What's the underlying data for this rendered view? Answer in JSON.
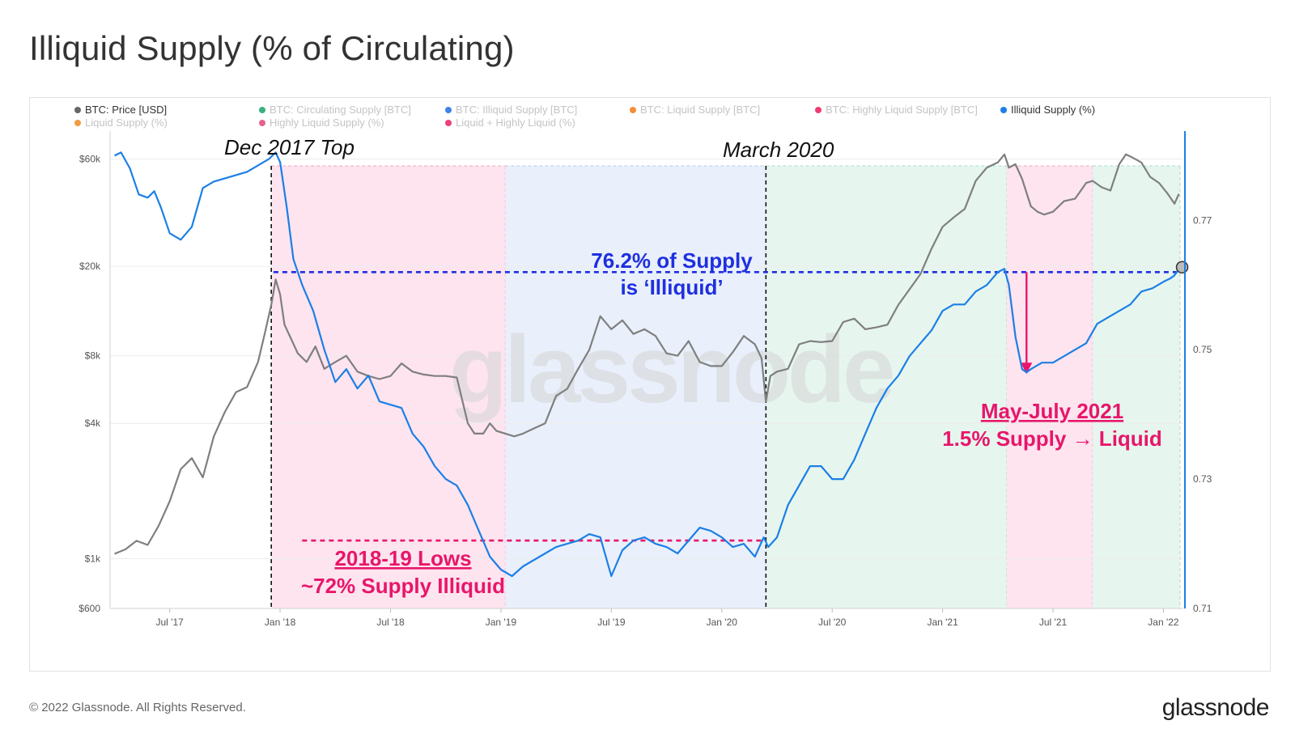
{
  "title": "Illiquid Supply (% of Circulating)",
  "footer": {
    "copyright": "© 2022 Glassnode. All Rights Reserved.",
    "brand": "glassnode"
  },
  "watermark": "glassnode",
  "colors": {
    "price": "#7f7f7f",
    "illiquid": "#1c7fe6",
    "pink_band": "#fde4ef",
    "blue_band": "#e9f0fb",
    "green_band": "#e6f6ef",
    "annot_blue": "#1f2fe0",
    "annot_pink": "#e8166a"
  },
  "chart_data": {
    "type": "line",
    "title": "Illiquid Supply (% of Circulating)",
    "legend": [
      {
        "label": "BTC: Price [USD]",
        "color": "#666666",
        "active": true
      },
      {
        "label": "BTC: Circulating Supply [BTC]",
        "color": "#1aa06a",
        "active": false
      },
      {
        "label": "BTC: Illiquid Supply [BTC]",
        "color": "#1c6fe0",
        "active": false
      },
      {
        "label": "BTC: Liquid Supply [BTC]",
        "color": "#f07a16",
        "active": false
      },
      {
        "label": "BTC: Highly Liquid Supply [BTC]",
        "color": "#f01a5a",
        "active": false
      },
      {
        "label": "Illiquid Supply (%)",
        "color": "#1c7fe6",
        "active": true
      },
      {
        "label": "Liquid Supply (%)",
        "color": "#f08a20",
        "active": false
      },
      {
        "label": "Highly Liquid Supply (%)",
        "color": "#e0457a",
        "active": false
      },
      {
        "label": "Liquid + Highly Liquid (%)",
        "color": "#ea2060",
        "active": false
      }
    ],
    "x_ticks": [
      "Jul '17",
      "Jan '18",
      "Jul '18",
      "Jan '19",
      "Jul '19",
      "Jan '20",
      "Jul '20",
      "Jan '21",
      "Jul '21",
      "Jan '22"
    ],
    "x_tick_dates": [
      2017.5,
      2018.0,
      2018.5,
      2019.0,
      2019.5,
      2020.0,
      2020.5,
      2021.0,
      2021.5,
      2022.0
    ],
    "x_range": [
      2017.23,
      2022.09
    ],
    "y_left": {
      "scale": "log",
      "range": [
        600,
        80000
      ],
      "ticks": [
        600,
        1000,
        4000,
        8000,
        20000,
        60000
      ],
      "tick_labels": [
        "$600",
        "$1k",
        "$4k",
        "$8k",
        "$20k",
        "$60k"
      ]
    },
    "y_right": {
      "range": [
        0.71,
        0.7838
      ],
      "ticks": [
        0.71,
        0.73,
        0.75,
        0.77
      ],
      "tick_labels": [
        "0.71",
        "0.73",
        "0.75",
        "0.77"
      ]
    },
    "bands": [
      {
        "from": 2017.96,
        "to": 2019.02,
        "kind": "pink"
      },
      {
        "from": 2019.02,
        "to": 2020.2,
        "kind": "blue"
      },
      {
        "from": 2020.2,
        "to": 2021.29,
        "kind": "green"
      },
      {
        "from": 2021.29,
        "to": 2021.68,
        "kind": "pink"
      },
      {
        "from": 2021.68,
        "to": 2022.075,
        "kind": "green"
      }
    ],
    "series": [
      {
        "name": "BTC: Price [USD]",
        "axis": "left",
        "x": [
          2017.25,
          2017.3,
          2017.35,
          2017.4,
          2017.45,
          2017.5,
          2017.55,
          2017.6,
          2017.65,
          2017.7,
          2017.75,
          2017.8,
          2017.85,
          2017.9,
          2017.93,
          2017.96,
          2017.98,
          2018.0,
          2018.02,
          2018.05,
          2018.08,
          2018.12,
          2018.16,
          2018.2,
          2018.25,
          2018.3,
          2018.35,
          2018.4,
          2018.45,
          2018.5,
          2018.55,
          2018.6,
          2018.65,
          2018.7,
          2018.75,
          2018.8,
          2018.85,
          2018.88,
          2018.92,
          2018.95,
          2018.98,
          2019.02,
          2019.06,
          2019.1,
          2019.15,
          2019.2,
          2019.25,
          2019.3,
          2019.35,
          2019.4,
          2019.45,
          2019.5,
          2019.55,
          2019.6,
          2019.65,
          2019.7,
          2019.75,
          2019.8,
          2019.85,
          2019.9,
          2019.95,
          2020.0,
          2020.05,
          2020.1,
          2020.15,
          2020.18,
          2020.2,
          2020.22,
          2020.25,
          2020.3,
          2020.35,
          2020.4,
          2020.45,
          2020.5,
          2020.55,
          2020.6,
          2020.65,
          2020.7,
          2020.75,
          2020.8,
          2020.85,
          2020.9,
          2020.95,
          2021.0,
          2021.05,
          2021.1,
          2021.15,
          2021.2,
          2021.25,
          2021.28,
          2021.3,
          2021.33,
          2021.36,
          2021.4,
          2021.43,
          2021.46,
          2021.5,
          2021.55,
          2021.6,
          2021.65,
          2021.68,
          2021.72,
          2021.76,
          2021.8,
          2021.83,
          2021.86,
          2021.9,
          2021.94,
          2021.98,
          2022.02,
          2022.05,
          2022.07
        ],
        "y": [
          1050,
          1100,
          1200,
          1150,
          1400,
          1800,
          2500,
          2800,
          2300,
          3500,
          4500,
          5500,
          5800,
          7500,
          10000,
          13500,
          17500,
          15000,
          11000,
          9500,
          8200,
          7500,
          8800,
          7000,
          7500,
          8000,
          6800,
          6500,
          6300,
          6500,
          7400,
          6800,
          6600,
          6500,
          6500,
          6400,
          4000,
          3600,
          3600,
          4000,
          3700,
          3600,
          3500,
          3600,
          3800,
          4000,
          5300,
          5700,
          7000,
          8500,
          12000,
          10500,
          11500,
          10000,
          10500,
          9800,
          8200,
          8000,
          9300,
          7500,
          7200,
          7200,
          8300,
          9800,
          9000,
          7800,
          5000,
          6500,
          6800,
          7000,
          9000,
          9300,
          9200,
          9300,
          11300,
          11700,
          10500,
          10700,
          11000,
          13500,
          15800,
          18500,
          24000,
          30000,
          33000,
          36000,
          48000,
          55000,
          58000,
          63000,
          55000,
          57000,
          49000,
          37000,
          35000,
          34000,
          35000,
          39000,
          40000,
          47000,
          48000,
          45000,
          43500,
          57000,
          63000,
          61000,
          58000,
          50000,
          47000,
          42000,
          38000,
          42000
        ]
      },
      {
        "name": "Illiquid Supply (%)",
        "axis": "right",
        "x": [
          2017.25,
          2017.28,
          2017.32,
          2017.36,
          2017.4,
          2017.43,
          2017.46,
          2017.5,
          2017.55,
          2017.6,
          2017.65,
          2017.7,
          2017.75,
          2017.8,
          2017.85,
          2017.9,
          2017.95,
          2017.98,
          2018.0,
          2018.03,
          2018.06,
          2018.1,
          2018.15,
          2018.2,
          2018.25,
          2018.3,
          2018.35,
          2018.4,
          2018.45,
          2018.5,
          2018.55,
          2018.6,
          2018.65,
          2018.7,
          2018.75,
          2018.8,
          2018.85,
          2018.9,
          2018.95,
          2019.0,
          2019.05,
          2019.1,
          2019.15,
          2019.2,
          2019.25,
          2019.3,
          2019.35,
          2019.4,
          2019.45,
          2019.5,
          2019.55,
          2019.6,
          2019.65,
          2019.7,
          2019.75,
          2019.8,
          2019.85,
          2019.9,
          2019.95,
          2020.0,
          2020.05,
          2020.1,
          2020.15,
          2020.19,
          2020.21,
          2020.25,
          2020.3,
          2020.35,
          2020.4,
          2020.45,
          2020.5,
          2020.55,
          2020.6,
          2020.65,
          2020.7,
          2020.75,
          2020.8,
          2020.85,
          2020.9,
          2020.95,
          2021.0,
          2021.05,
          2021.1,
          2021.15,
          2021.2,
          2021.25,
          2021.28,
          2021.3,
          2021.33,
          2021.36,
          2021.38,
          2021.4,
          2021.45,
          2021.5,
          2021.55,
          2021.6,
          2021.65,
          2021.7,
          2021.75,
          2021.8,
          2021.85,
          2021.9,
          2021.95,
          2022.0,
          2022.03,
          2022.05,
          2022.07
        ],
        "y": [
          0.78,
          0.7805,
          0.778,
          0.774,
          0.7735,
          0.7745,
          0.772,
          0.768,
          0.767,
          0.769,
          0.775,
          0.776,
          0.7765,
          0.777,
          0.7775,
          0.7785,
          0.7795,
          0.7805,
          0.779,
          0.772,
          0.764,
          0.76,
          0.756,
          0.75,
          0.745,
          0.747,
          0.744,
          0.746,
          0.742,
          0.7415,
          0.741,
          0.737,
          0.735,
          0.732,
          0.73,
          0.729,
          0.726,
          0.722,
          0.718,
          0.716,
          0.715,
          0.7165,
          0.7175,
          0.7185,
          0.7195,
          0.72,
          0.7205,
          0.7215,
          0.721,
          0.715,
          0.719,
          0.7205,
          0.721,
          0.72,
          0.7195,
          0.7185,
          0.7205,
          0.7225,
          0.722,
          0.721,
          0.7195,
          0.72,
          0.718,
          0.721,
          0.7195,
          0.721,
          0.726,
          0.729,
          0.732,
          0.732,
          0.73,
          0.73,
          0.733,
          0.737,
          0.741,
          0.744,
          0.746,
          0.749,
          0.751,
          0.753,
          0.756,
          0.757,
          0.757,
          0.759,
          0.76,
          0.762,
          0.7625,
          0.76,
          0.752,
          0.747,
          0.7465,
          0.747,
          0.748,
          0.748,
          0.749,
          0.75,
          0.751,
          0.754,
          0.755,
          0.756,
          0.757,
          0.759,
          0.7595,
          0.7605,
          0.761,
          0.7615,
          0.7625
        ]
      }
    ],
    "reference_lines": {
      "illiquid_76_2": 0.762,
      "lows_72": 0.7205,
      "vertical": [
        {
          "x": 2017.96,
          "label": "Dec 2017 Top"
        },
        {
          "x": 2020.2,
          "label": "March 2020"
        }
      ],
      "drop_arrow": {
        "x": 2021.38,
        "from": 0.762,
        "to": 0.7465
      }
    },
    "annotations": {
      "dec_2017": "Dec 2017 Top",
      "march_2020": "March 2020",
      "illiquid_line1": "76.2% of Supply",
      "illiquid_line2": "is ‘Illiquid’",
      "lows_line1": "2018-19 Lows",
      "lows_line2": "~72% Supply Illiquid",
      "may_july_line1": "May-July 2021",
      "may_july_line2": "1.5% Supply → Liquid"
    }
  }
}
